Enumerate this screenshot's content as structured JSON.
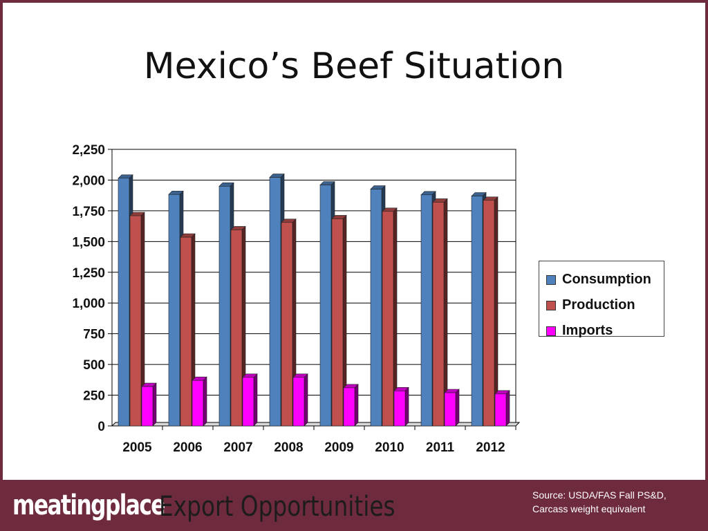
{
  "slide": {
    "title": "Mexico’s Beef Situation"
  },
  "chart_data": {
    "type": "bar",
    "categories": [
      "2005",
      "2006",
      "2007",
      "2008",
      "2009",
      "2010",
      "2011",
      "2012"
    ],
    "series": [
      {
        "name": "Consumption",
        "values": [
          2015,
          1883,
          1950,
          2022,
          1960,
          1926,
          1880,
          1870
        ],
        "color": "#4f81bd"
      },
      {
        "name": "Production",
        "values": [
          1710,
          1535,
          1595,
          1655,
          1685,
          1745,
          1820,
          1835
        ],
        "color": "#c0504d"
      },
      {
        "name": "Imports",
        "values": [
          320,
          370,
          395,
          395,
          310,
          285,
          270,
          260
        ],
        "color": "#ff00ff"
      }
    ],
    "ylim": [
      0,
      2250
    ],
    "yticks": [
      0,
      250,
      500,
      750,
      1000,
      1250,
      1500,
      1750,
      2000,
      2250
    ],
    "ytick_labels": [
      "0",
      "250",
      "500",
      "750",
      "1,000",
      "1,250",
      "1,500",
      "1,750",
      "2,000",
      "2,250"
    ],
    "grid": true,
    "legend_position": "right"
  },
  "footer": {
    "logo": "meatingplace",
    "tagline": "Export Opportunities",
    "source_line1": "Source: USDA/FAS Fall PS&D,",
    "source_line2": "Carcass weight equivalent"
  }
}
